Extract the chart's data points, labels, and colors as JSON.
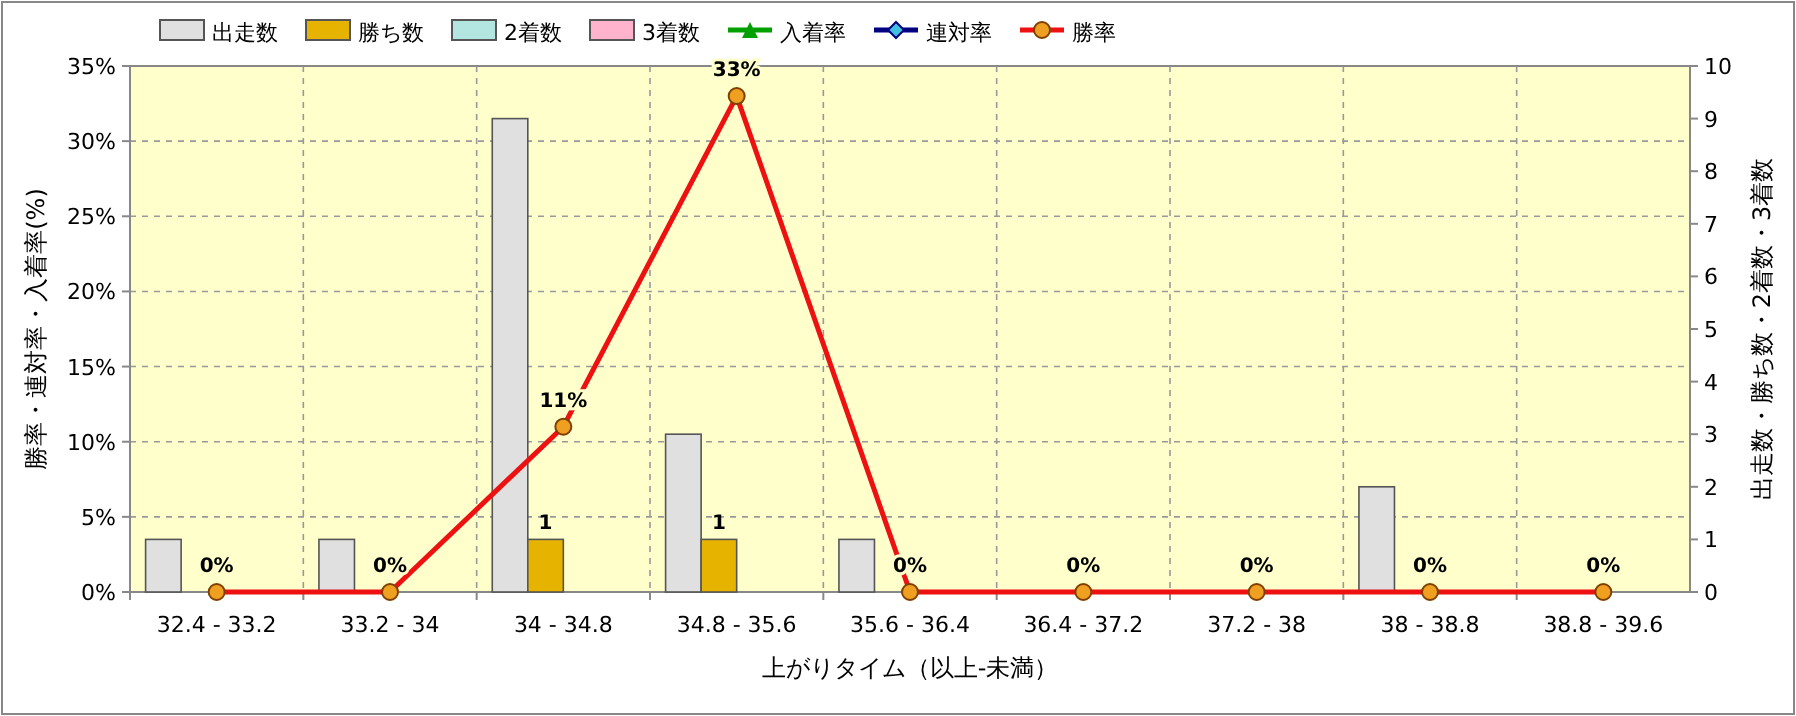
{
  "chart_data": {
    "type": "bar",
    "xlabel": "上がりタイム（以上-未満）",
    "ylabel": "勝率・連対率・入着率(%)",
    "y2label": "出走数・勝ち数・2着数・3着数",
    "categories": [
      "32.4 - 33.2",
      "33.2 - 34",
      "34 - 34.8",
      "34.8 - 35.6",
      "35.6 - 36.4",
      "36.4 - 37.2",
      "37.2 - 38",
      "38 - 38.8",
      "38.8 - 39.6"
    ],
    "series": [
      {
        "name": "出走数",
        "type": "bar",
        "axis": "y2",
        "color": "#e0e0e0",
        "values": [
          1,
          1,
          9,
          3,
          1,
          0,
          0,
          2,
          0
        ]
      },
      {
        "name": "勝ち数",
        "type": "bar",
        "axis": "y2",
        "color": "#e6b400",
        "values": [
          0,
          0,
          1,
          1,
          0,
          0,
          0,
          0,
          0
        ],
        "value_labels": [
          null,
          null,
          "1",
          "1",
          null,
          null,
          null,
          null,
          null
        ]
      },
      {
        "name": "2着数",
        "type": "bar",
        "axis": "y2",
        "color": "#b3e6e0",
        "values": [
          0,
          0,
          0,
          0,
          0,
          0,
          0,
          0,
          0
        ]
      },
      {
        "name": "3着数",
        "type": "bar",
        "axis": "y2",
        "color": "#ffb3cc",
        "values": [
          0,
          0,
          0,
          0,
          0,
          0,
          0,
          0,
          0
        ]
      },
      {
        "name": "入着率",
        "type": "line",
        "axis": "y",
        "color": "#00a000",
        "marker": "triangle",
        "values": [
          null,
          null,
          null,
          null,
          null,
          null,
          null,
          null,
          null
        ]
      },
      {
        "name": "連対率",
        "type": "line",
        "axis": "y",
        "color": "#000080",
        "marker": "diamond",
        "values": [
          null,
          null,
          null,
          null,
          null,
          null,
          null,
          null,
          null
        ]
      },
      {
        "name": "勝率",
        "type": "line",
        "axis": "y",
        "color": "#ee1111",
        "marker": "circle",
        "values": [
          0,
          0,
          11,
          33,
          0,
          0,
          0,
          0,
          0
        ],
        "value_labels": [
          "0%",
          "0%",
          "11%",
          "33%",
          "0%",
          "0%",
          "0%",
          "0%",
          "0%"
        ]
      }
    ],
    "ylim": [
      0,
      35
    ],
    "yticks": [
      {
        "value": 0,
        "label": "0%"
      },
      {
        "value": 5,
        "label": "5%"
      },
      {
        "value": 10,
        "label": "10%"
      },
      {
        "value": 15,
        "label": "15%"
      },
      {
        "value": 20,
        "label": "20%"
      },
      {
        "value": 25,
        "label": "25%"
      },
      {
        "value": 30,
        "label": "30%"
      },
      {
        "value": 35,
        "label": "35%"
      }
    ],
    "y2lim": [
      0,
      10
    ],
    "y2ticks": [
      0,
      1,
      2,
      3,
      4,
      5,
      6,
      7,
      8,
      9,
      10
    ],
    "grid": true,
    "legend": "top left"
  }
}
